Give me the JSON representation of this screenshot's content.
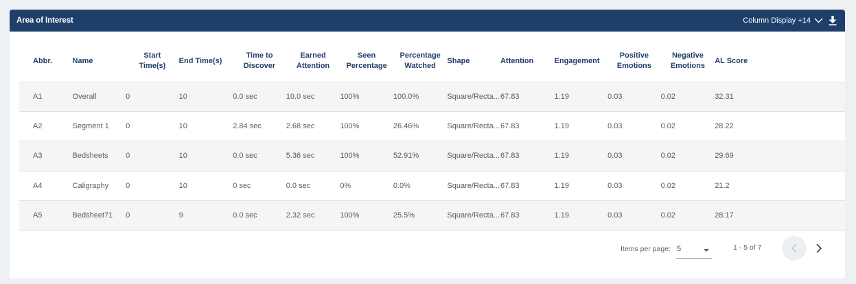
{
  "header": {
    "title": "Area of Interest",
    "column_display": "Column Display +14"
  },
  "table": {
    "columns": [
      "Abbr.",
      "Name",
      "Start Time(s)",
      "End Time(s)",
      "Time to Discover",
      "Earned Attention",
      "Seen Percentage",
      "Percentage Watched",
      "Shape",
      "Attention",
      "Engagement",
      "Positive Emotions",
      "Negative Emotions",
      "AL Score"
    ],
    "rows": [
      [
        "A1",
        "Overall",
        "0",
        "10",
        "0.0 sec",
        "10.0 sec",
        "100%",
        "100.0%",
        "Square/Recta...",
        "67.83",
        "1.19",
        "0.03",
        "0.02",
        "32.31"
      ],
      [
        "A2",
        "Segment 1",
        "0",
        "10",
        "2.84 sec",
        "2.68 sec",
        "100%",
        "26.46%",
        "Square/Recta...",
        "67.83",
        "1.19",
        "0.03",
        "0.02",
        "28.22"
      ],
      [
        "A3",
        "Bedsheets",
        "0",
        "10",
        "0.0 sec",
        "5.36 sec",
        "100%",
        "52.91%",
        "Square/Recta...",
        "67.83",
        "1.19",
        "0.03",
        "0.02",
        "29.69"
      ],
      [
        "A4",
        "Caligraphy",
        "0",
        "10",
        "0 sec",
        "0.0 sec",
        "0%",
        "0.0%",
        "Square/Recta...",
        "67.83",
        "1.19",
        "0.03",
        "0.02",
        "21.2"
      ],
      [
        "A5",
        "Bedsheet71",
        "0",
        "9",
        "0.0 sec",
        "2.32 sec",
        "100%",
        "25.5%",
        "Square/Recta...",
        "67.83",
        "1.19",
        "0.03",
        "0.02",
        "28.17"
      ]
    ]
  },
  "paginator": {
    "items_per_page_label": "Items per page:",
    "items_per_page_value": "5",
    "range_label": "1 - 5 of 7"
  },
  "colors": {
    "header_bg": "#1f3f6b",
    "header_text": "#1f3f6b",
    "row_stripe": "#f5f5f5"
  },
  "icons": {
    "column_display": "chevron-down-icon",
    "download": "download-icon",
    "prev": "chevron-left-icon",
    "next": "chevron-right-icon"
  }
}
